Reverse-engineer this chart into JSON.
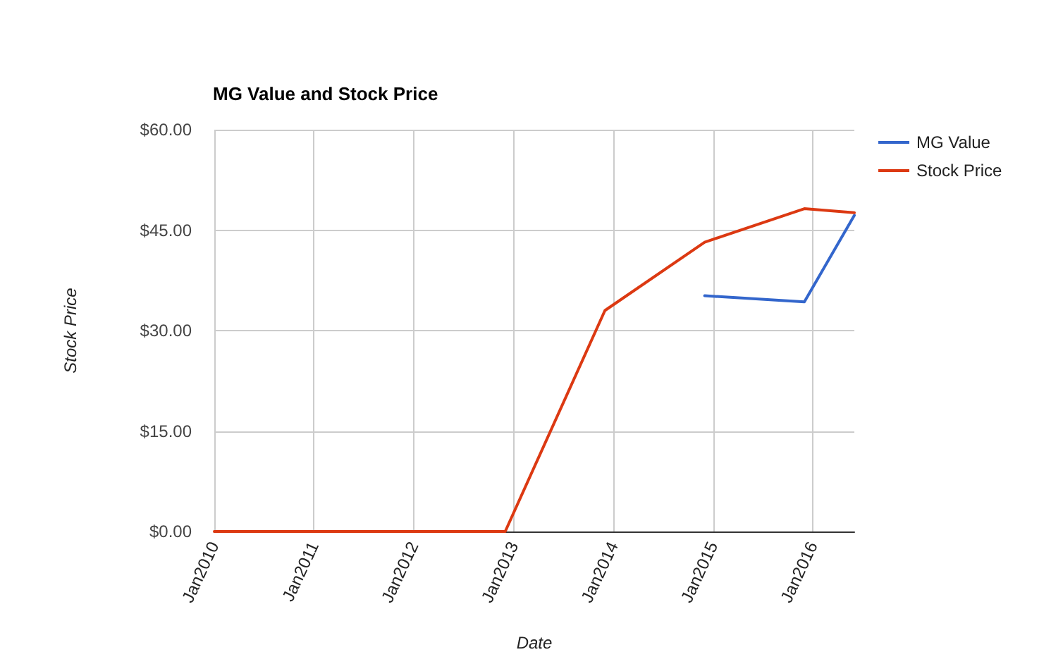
{
  "chart_data": {
    "type": "line",
    "title": "MG Value and Stock Price",
    "xlabel": "Date",
    "ylabel": "Stock Price",
    "xlim": [
      "2010-01",
      "2016-06"
    ],
    "xticks": [
      {
        "value": "2010-01",
        "label": "Jan2010"
      },
      {
        "value": "2011-01",
        "label": "Jan2011"
      },
      {
        "value": "2012-01",
        "label": "Jan2012"
      },
      {
        "value": "2013-01",
        "label": "Jan2013"
      },
      {
        "value": "2014-01",
        "label": "Jan2014"
      },
      {
        "value": "2015-01",
        "label": "Jan2015"
      },
      {
        "value": "2016-01",
        "label": "Jan2016"
      }
    ],
    "ylim": [
      0,
      60
    ],
    "yticks": [
      {
        "value": 0,
        "label": "$0.00"
      },
      {
        "value": 15,
        "label": "$15.00"
      },
      {
        "value": 30,
        "label": "$30.00"
      },
      {
        "value": 45,
        "label": "$45.00"
      },
      {
        "value": 60,
        "label": "$60.00"
      }
    ],
    "series": [
      {
        "name": "MG Value",
        "color": "#3366cc",
        "x": [
          "2014-12",
          "2015-12",
          "2016-06"
        ],
        "values": [
          35.2,
          34.3,
          47.2
        ]
      },
      {
        "name": "Stock Price",
        "color": "#dc3912",
        "x": [
          "2010-01",
          "2010-12",
          "2011-12",
          "2012-12",
          "2013-12",
          "2014-12",
          "2015-12",
          "2016-06"
        ],
        "values": [
          0,
          0,
          0,
          0,
          33,
          43.2,
          48.2,
          47.6
        ]
      }
    ],
    "grid": true,
    "legend": "top right",
    "marker": "none",
    "line_style": "solid"
  }
}
